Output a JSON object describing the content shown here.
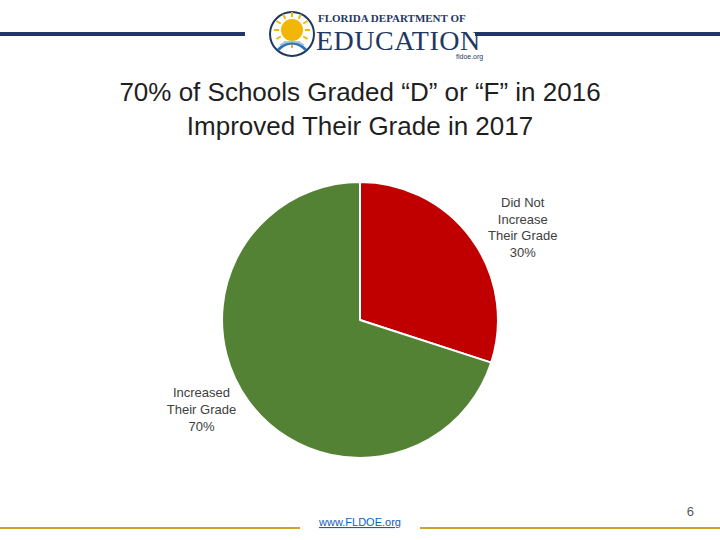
{
  "header": {
    "logo_line1": "FLORIDA DEPARTMENT OF",
    "logo_line2": "EDUCATION",
    "logo_url": "fldoe.org"
  },
  "chart_data": {
    "type": "pie",
    "title": "70% of Schools Graded “D” or “F” in 2016 Improved Their Grade in 2017",
    "categories": [
      "Did Not Increase Their Grade",
      "Increased Their Grade"
    ],
    "values": [
      30,
      70
    ],
    "value_labels": [
      "30%",
      "70%"
    ],
    "colors": [
      "#c00000",
      "#548235"
    ],
    "data_labels": true
  },
  "footer": {
    "url": "www.FLDOE.org",
    "page": 6
  }
}
